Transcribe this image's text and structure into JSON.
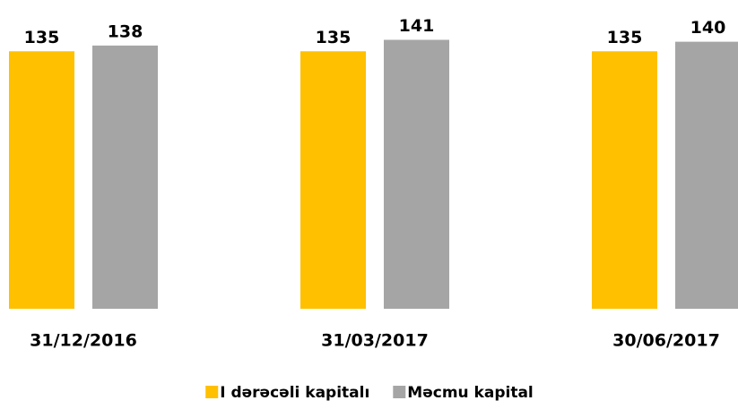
{
  "chart_data": {
    "type": "bar",
    "categories": [
      "31/12/2016",
      "31/03/2017",
      "30/06/2017"
    ],
    "series": [
      {
        "name": "I dərəcəli kapitalı",
        "color": "#ffc000",
        "values": [
          135,
          135,
          135
        ]
      },
      {
        "name": "Məcmu kapital",
        "color": "#a5a5a5",
        "values": [
          138,
          141,
          140
        ]
      }
    ],
    "ylim": [
      0,
      160
    ]
  }
}
